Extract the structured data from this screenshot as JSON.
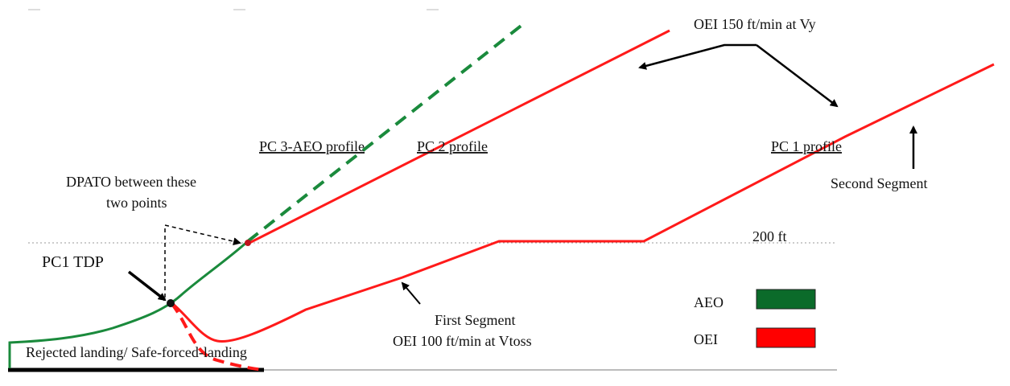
{
  "labels": {
    "oei_150": "OEI 150 ft/min at Vy",
    "pc3_aeo": "PC 3-AEO profile",
    "pc2": "PC 2 profile",
    "pc1": "PC 1 profile",
    "second_segment": "Second Segment",
    "dpato_line1": "DPATO between these",
    "dpato_line2": "two points",
    "ft200": "200 ft",
    "pc1_tdp": "PC1 TDP",
    "first_segment_line1": "First Segment",
    "first_segment_line2": "OEI 100 ft/min at Vtoss",
    "rejected": "Rejected landing/ Safe-forced-landing"
  },
  "legend": {
    "items": [
      {
        "label": "AEO",
        "color": "#0b6b2a"
      },
      {
        "label": "OEI",
        "color": "#ff0000"
      }
    ]
  },
  "colors": {
    "aeo": "#1a8a3c",
    "oei": "#ff1a1a",
    "ground": "#000000"
  }
}
